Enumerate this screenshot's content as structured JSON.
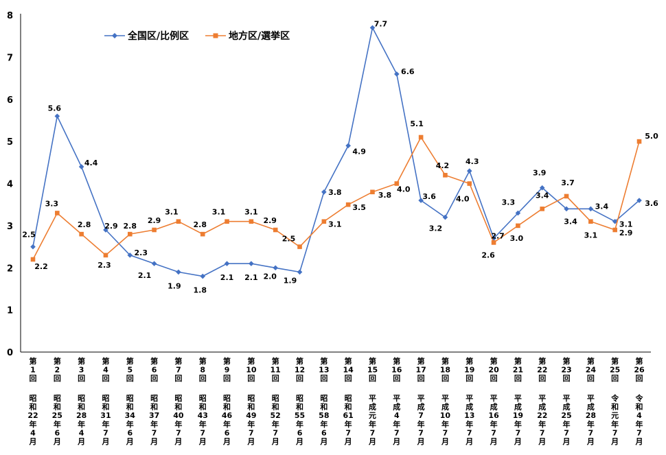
{
  "chart_data": {
    "type": "line",
    "ylim": [
      0,
      8
    ],
    "yticks": [
      0,
      1,
      2,
      3,
      4,
      5,
      6,
      7,
      8
    ],
    "grid": false,
    "legend_position": "top-left",
    "categories": [
      {
        "round": "第1回",
        "date": "昭和22年4月"
      },
      {
        "round": "第2回",
        "date": "昭和25年6月"
      },
      {
        "round": "第3回",
        "date": "昭和28年4月"
      },
      {
        "round": "第4回",
        "date": "昭和31年7月"
      },
      {
        "round": "第5回",
        "date": "昭和34年6月"
      },
      {
        "round": "第6回",
        "date": "昭和37年7月"
      },
      {
        "round": "第7回",
        "date": "昭和40年7月"
      },
      {
        "round": "第8回",
        "date": "昭和43年7月"
      },
      {
        "round": "第9回",
        "date": "昭和46年6月"
      },
      {
        "round": "第10回",
        "date": "昭和49年7月"
      },
      {
        "round": "第11回",
        "date": "昭和52年7月"
      },
      {
        "round": "第12回",
        "date": "昭和55年6月"
      },
      {
        "round": "第13回",
        "date": "昭和58年6月"
      },
      {
        "round": "第14回",
        "date": "昭和61年7月"
      },
      {
        "round": "第15回",
        "date": "平成元年7月"
      },
      {
        "round": "第16回",
        "date": "平成4年7月"
      },
      {
        "round": "第17回",
        "date": "平成7年7月"
      },
      {
        "round": "第18回",
        "date": "平成10年7月"
      },
      {
        "round": "第19回",
        "date": "平成13年7月"
      },
      {
        "round": "第20回",
        "date": "平成16年7月"
      },
      {
        "round": "第21回",
        "date": "平成19年7月"
      },
      {
        "round": "第22回",
        "date": "平成22年7月"
      },
      {
        "round": "第23回",
        "date": "平成25年7月"
      },
      {
        "round": "第24回",
        "date": "平成28年7月"
      },
      {
        "round": "第25回",
        "date": "令和元年7月"
      },
      {
        "round": "第26回",
        "date": "令和4年7月"
      }
    ],
    "series": [
      {
        "name": "全国区/比例区",
        "color": "#4472C4",
        "marker": "diamond",
        "values": [
          2.5,
          5.6,
          4.4,
          2.9,
          2.3,
          2.1,
          1.9,
          1.8,
          2.1,
          2.1,
          2.0,
          1.9,
          3.8,
          4.9,
          7.7,
          6.6,
          3.6,
          3.2,
          4.3,
          2.7,
          3.3,
          3.9,
          3.4,
          3.4,
          3.1,
          3.6
        ],
        "labels": [
          "2.5",
          "5.6",
          "4.4",
          "2.9",
          "2.3",
          "2.1",
          "1.9",
          "1.8",
          "2.1",
          "2.1",
          "2.0",
          "1.9",
          "3.8",
          "4.9",
          "7.7",
          "6.6",
          "3.6",
          "3.2",
          "4.3",
          "2.7",
          "3.3",
          "3.9",
          "3.4",
          "3.4",
          "3.1",
          "3.6"
        ]
      },
      {
        "name": "地方区/選挙区",
        "color": "#ED7D31",
        "marker": "square",
        "values": [
          2.2,
          3.3,
          2.8,
          2.3,
          2.8,
          2.9,
          3.1,
          2.8,
          3.1,
          3.1,
          2.9,
          2.5,
          3.1,
          3.5,
          3.8,
          4.0,
          5.1,
          4.2,
          4.0,
          2.6,
          3.0,
          3.4,
          3.7,
          3.1,
          2.9,
          5.0
        ],
        "labels": [
          "2.2",
          "3.3",
          "2.8",
          "2.3",
          "2.8",
          "2.9",
          "3.1",
          "2.8",
          "3.1",
          "3.1",
          "2.9",
          "2.5",
          "3.1",
          "3.5",
          "3.8",
          "4.0",
          "5.1",
          "4.2",
          "4.0",
          "2.6",
          "3.0",
          "3.4",
          "3.7",
          "3.1",
          "2.9",
          "5.0"
        ]
      }
    ]
  }
}
